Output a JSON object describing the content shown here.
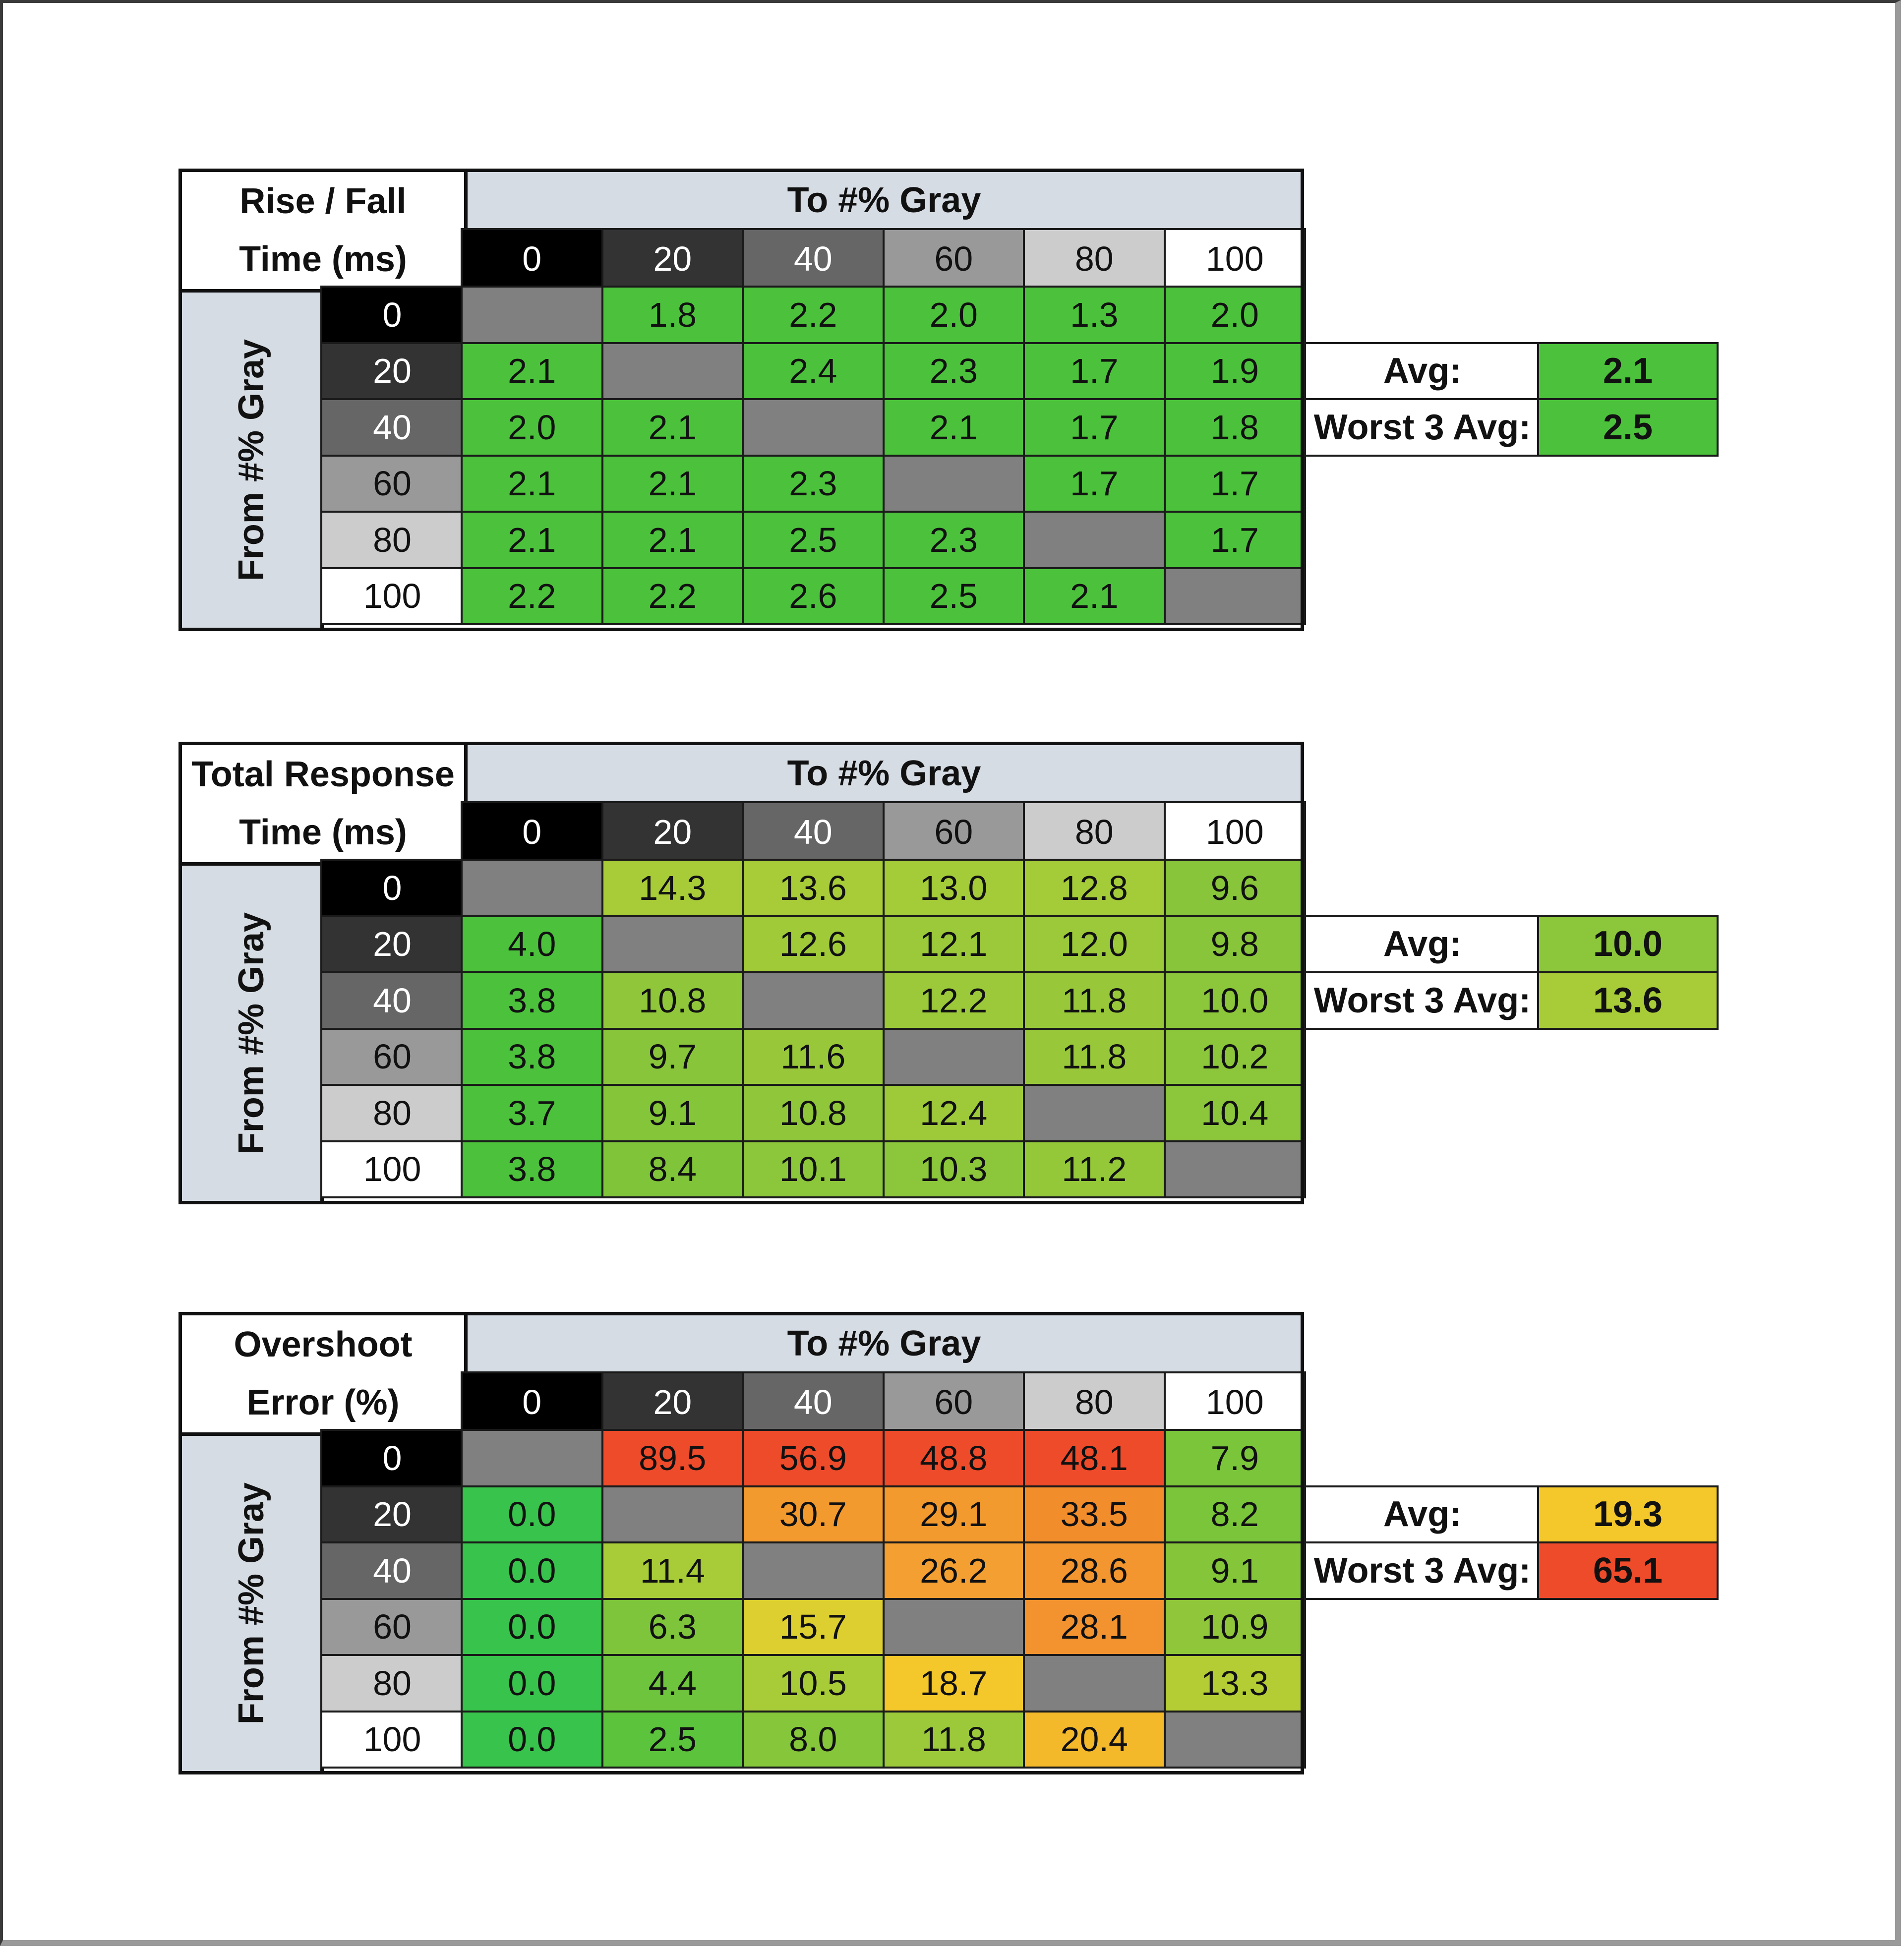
{
  "chart_data": [
    {
      "type": "heatmap",
      "title_lines": [
        "Rise / Fall",
        "Time (ms)"
      ],
      "column_axis_label": "To #% Gray",
      "row_axis_label": "From #% Gray",
      "column_labels": [
        "0",
        "20",
        "40",
        "60",
        "80",
        "100"
      ],
      "row_labels": [
        "0",
        "20",
        "40",
        "60",
        "80",
        "100"
      ],
      "values": [
        [
          "",
          "1.8",
          "2.2",
          "2.0",
          "1.3",
          "2.0"
        ],
        [
          "2.1",
          "",
          "2.4",
          "2.3",
          "1.7",
          "1.9"
        ],
        [
          "2.0",
          "2.1",
          "",
          "2.1",
          "1.7",
          "1.8"
        ],
        [
          "2.1",
          "2.1",
          "2.3",
          "",
          "1.7",
          "1.7"
        ],
        [
          "2.1",
          "2.1",
          "2.5",
          "2.3",
          "",
          "1.7"
        ],
        [
          "2.2",
          "2.2",
          "2.6",
          "2.5",
          "2.1",
          ""
        ]
      ],
      "summary": [
        {
          "label": "Avg:",
          "value": "2.1"
        },
        {
          "label": "Worst 3 Avg:",
          "value": "2.5"
        }
      ]
    },
    {
      "type": "heatmap",
      "title_lines": [
        "Total Response",
        "Time (ms)"
      ],
      "column_axis_label": "To #% Gray",
      "row_axis_label": "From #% Gray",
      "column_labels": [
        "0",
        "20",
        "40",
        "60",
        "80",
        "100"
      ],
      "row_labels": [
        "0",
        "20",
        "40",
        "60",
        "80",
        "100"
      ],
      "values": [
        [
          "",
          "14.3",
          "13.6",
          "13.0",
          "12.8",
          "9.6"
        ],
        [
          "4.0",
          "",
          "12.6",
          "12.1",
          "12.0",
          "9.8"
        ],
        [
          "3.8",
          "10.8",
          "",
          "12.2",
          "11.8",
          "10.0"
        ],
        [
          "3.8",
          "9.7",
          "11.6",
          "",
          "11.8",
          "10.2"
        ],
        [
          "3.7",
          "9.1",
          "10.8",
          "12.4",
          "",
          "10.4"
        ],
        [
          "3.8",
          "8.4",
          "10.1",
          "10.3",
          "11.2",
          ""
        ]
      ],
      "summary": [
        {
          "label": "Avg:",
          "value": "10.0"
        },
        {
          "label": "Worst 3 Avg:",
          "value": "13.6"
        }
      ]
    },
    {
      "type": "heatmap",
      "title_lines": [
        "Overshoot",
        "Error (%)"
      ],
      "column_axis_label": "To #% Gray",
      "row_axis_label": "From #% Gray",
      "column_labels": [
        "0",
        "20",
        "40",
        "60",
        "80",
        "100"
      ],
      "row_labels": [
        "0",
        "20",
        "40",
        "60",
        "80",
        "100"
      ],
      "values": [
        [
          "",
          "89.5",
          "56.9",
          "48.8",
          "48.1",
          "7.9"
        ],
        [
          "0.0",
          "",
          "30.7",
          "29.1",
          "33.5",
          "8.2"
        ],
        [
          "0.0",
          "11.4",
          "",
          "26.2",
          "28.6",
          "9.1"
        ],
        [
          "0.0",
          "6.3",
          "15.7",
          "",
          "28.1",
          "10.9"
        ],
        [
          "0.0",
          "4.4",
          "10.5",
          "18.7",
          "",
          "13.3"
        ],
        [
          "0.0",
          "2.5",
          "8.0",
          "11.8",
          "20.4",
          ""
        ]
      ],
      "summary": [
        {
          "label": "Avg:",
          "value": "19.3"
        },
        {
          "label": "Worst 3 Avg:",
          "value": "65.1"
        }
      ]
    }
  ],
  "colors": {
    "header_fill": "#d6dce4",
    "diagonal_fill": "#808080",
    "gray_levels": [
      "#000000",
      "#333333",
      "#666666",
      "#999999",
      "#cccccc",
      "#ffffff"
    ],
    "cells_rise_fall": [
      [
        "#808080",
        "#4cc23c",
        "#4cc23c",
        "#4cc23c",
        "#4cc23c",
        "#4cc23c"
      ],
      [
        "#4cc23c",
        "#808080",
        "#4cc23c",
        "#4cc23c",
        "#4cc23c",
        "#4cc23c"
      ],
      [
        "#4cc23c",
        "#4cc23c",
        "#808080",
        "#4cc23c",
        "#4cc23c",
        "#4cc23c"
      ],
      [
        "#4cc23c",
        "#4cc23c",
        "#4cc23c",
        "#808080",
        "#4cc23c",
        "#4cc23c"
      ],
      [
        "#4cc23c",
        "#4cc23c",
        "#4cc23c",
        "#4cc23c",
        "#808080",
        "#4cc23c"
      ],
      [
        "#4cc23c",
        "#4cc23c",
        "#4cc23c",
        "#4cc23c",
        "#4cc23c",
        "#808080"
      ]
    ],
    "summary_rise_fall": [
      "#4cc23c",
      "#4cc23c"
    ],
    "cells_total_response": [
      [
        "#808080",
        "#a8cb38",
        "#a8cb38",
        "#a4cb38",
        "#a4cb38",
        "#88c53a"
      ],
      [
        "#4cc23c",
        "#808080",
        "#a0ca38",
        "#9cc939",
        "#9cc939",
        "#88c53a"
      ],
      [
        "#4cc23c",
        "#90c73a",
        "#808080",
        "#9cc939",
        "#98c839",
        "#8cc63a"
      ],
      [
        "#4cc23c",
        "#88c53a",
        "#98c839",
        "#808080",
        "#98c839",
        "#8cc63a"
      ],
      [
        "#4cc23c",
        "#84c53a",
        "#90c73a",
        "#9ec939",
        "#808080",
        "#8cc63a"
      ],
      [
        "#4cc23c",
        "#80c43a",
        "#8cc63a",
        "#8cc63a",
        "#94c839",
        "#808080"
      ]
    ],
    "summary_total_response": [
      "#8cc63a",
      "#a8cb38"
    ],
    "cells_overshoot": [
      [
        "#808080",
        "#ee4b2b",
        "#ee4b2b",
        "#ee4b2b",
        "#ee4b2b",
        "#7bc53b"
      ],
      [
        "#38c44c",
        "#808080",
        "#f39a2e",
        "#f39a2e",
        "#f28d2c",
        "#7bc53b"
      ],
      [
        "#38c44c",
        "#a8cc37",
        "#808080",
        "#f39f32",
        "#f3962f",
        "#84c53a"
      ],
      [
        "#38c44c",
        "#7ec53b",
        "#dccf2f",
        "#808080",
        "#f39330",
        "#90c63a"
      ],
      [
        "#38c44c",
        "#6ec43c",
        "#a8cc37",
        "#f4c82a",
        "#808080",
        "#b4cd35"
      ],
      [
        "#38c44c",
        "#5cc33c",
        "#86c63a",
        "#9cc939",
        "#f4b82b",
        "#808080"
      ]
    ],
    "summary_overshoot": [
      "#f4c82a",
      "#ee4b2b"
    ]
  }
}
